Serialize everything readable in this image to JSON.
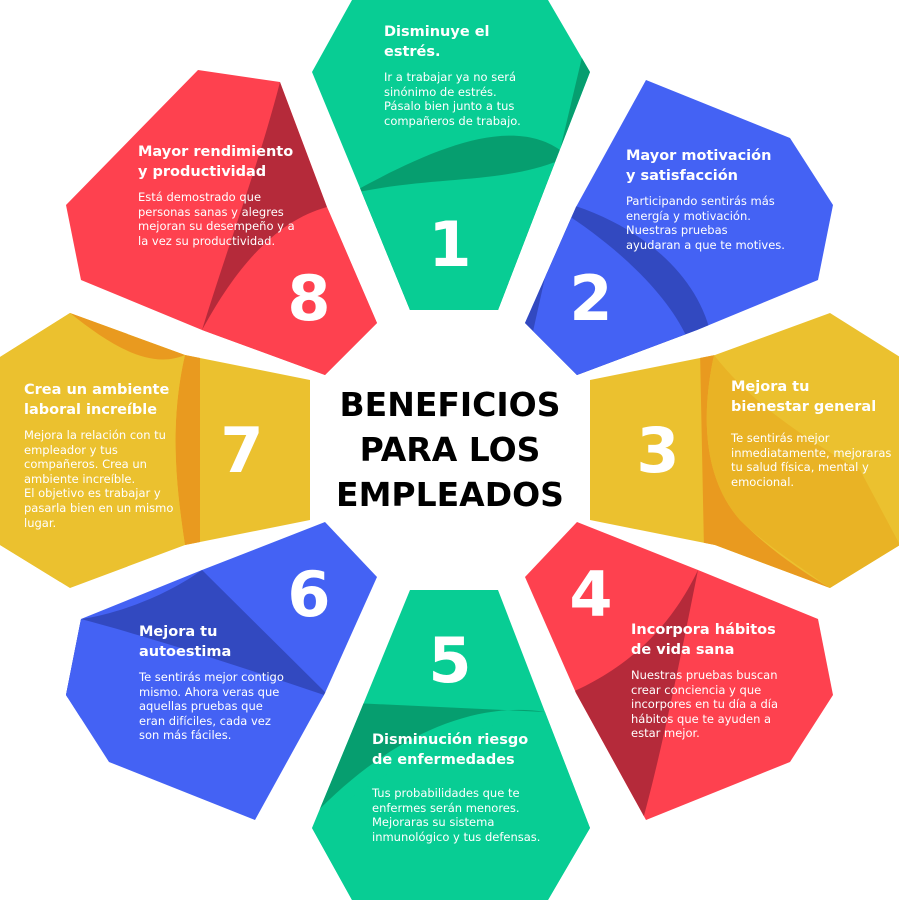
{
  "center_title": "BENEFICIOS\nPARA LOS\nEMPLEADOS",
  "petals": [
    {
      "number": "1",
      "title": "Disminuye el\nestrés.",
      "text": "Ir a trabajar ya no será\nsinónimo de estrés.\nPásalo bien junto a tus\ncompañeros de trabajo.",
      "color": "#08cd94",
      "shade": "#069e6f"
    },
    {
      "number": "2",
      "title": "Mayor motivación\ny satisfacción",
      "text": "Participando sentirás más\nenergía y motivación.\nNuestras pruebas\nayudaran a que te motives.",
      "color": "#4462f4",
      "shade": "#3249c0"
    },
    {
      "number": "3",
      "title": "Mejora tu\nbienestar general",
      "text": "Te sentirás mejor\ninmediatamente, mejoraras\ntu salud física, mental y\nemocional.",
      "color": "#ebc12f",
      "shade": "#e99a1f"
    },
    {
      "number": "4",
      "title": "Incorpora hábitos\nde vida sana",
      "text": "Nuestras pruebas buscan\ncrear conciencia y que\nincorpores en tu día a día\nhábitos que te ayuden a\nestar mejor.",
      "color": "#fe414f",
      "shade": "#b52a3a"
    },
    {
      "number": "5",
      "title": "Disminución riesgo\nde enfermedades",
      "text": "Tus probabilidades que te\nenfermes serán menores.\nMejoraras su sistema\ninmunológico y tus defensas.",
      "color": "#08cd94",
      "shade": "#069e6f"
    },
    {
      "number": "6",
      "title": "Mejora tu\nautoestima",
      "text": "Te sentirás mejor contigo\nmismo. Ahora veras que\naquellas pruebas que\neran difíciles, cada vez\nson más fáciles.",
      "color": "#4462f4",
      "shade": "#3249c0"
    },
    {
      "number": "7",
      "title": "Crea un ambiente\nlaboral increíble",
      "text": "Mejora la relación con tu\nempleador y tus\ncompañeros. Crea un\nambiente increíble.\nEl objetivo es trabajar y\npasarla bien en un mismo\nlugar.",
      "color": "#ebc12f",
      "shade": "#e99a1f"
    },
    {
      "number": "8",
      "title": "Mayor rendimiento\ny productividad",
      "text": "Está demostrado que\npersonas  sanas y alegres\nmejoran su desempeño y a\nla vez su productividad.",
      "color": "#fe414f",
      "shade": "#b52a3a"
    }
  ]
}
